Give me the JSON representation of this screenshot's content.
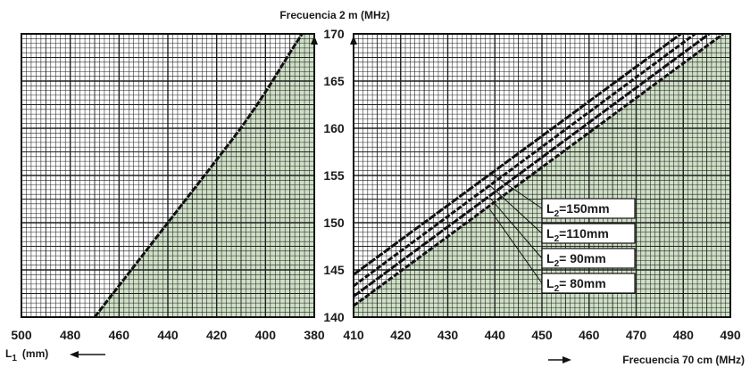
{
  "chart_data": [
    {
      "type": "line",
      "panel": "left",
      "title": "",
      "xlabel": "L1 (mm)",
      "xlabel_parts": {
        "main": "L",
        "sub": "1",
        "unit": "(mm)"
      },
      "ylabel": "Frecuencia 2 m (MHz)",
      "xlim": [
        500,
        380
      ],
      "ylim": [
        140,
        170
      ],
      "x_ticks": [
        "500",
        "480",
        "460",
        "440",
        "420",
        "400",
        "380"
      ],
      "series": [
        {
          "x": [
            470,
            455,
            440,
            425,
            410,
            400,
            390,
            385
          ],
          "y": [
            140,
            145,
            150,
            155,
            160,
            163.8,
            168,
            170
          ]
        }
      ],
      "shaded_region": "right of curve",
      "grid": true
    },
    {
      "type": "line",
      "panel": "right",
      "title": "",
      "xlabel": "Frecuencia 70 cm (MHz)",
      "ylabel": "Frecuencia 2 m (MHz)",
      "xlim": [
        410,
        490
      ],
      "ylim": [
        140,
        170
      ],
      "x_ticks": [
        "410",
        "420",
        "430",
        "440",
        "450",
        "460",
        "470",
        "480",
        "490"
      ],
      "y_ticks": [
        "140",
        "145",
        "150",
        "155",
        "160",
        "165",
        "170"
      ],
      "series": [
        {
          "name": "L2=150mm",
          "label": {
            "main": "L",
            "sub": "2",
            "text": "=150mm"
          },
          "x": [
            410,
            479.5
          ],
          "y": [
            144.5,
            170
          ]
        },
        {
          "name": "L2=110mm",
          "label": {
            "main": "L",
            "sub": "2",
            "text": "=110mm"
          },
          "x": [
            410,
            482.5
          ],
          "y": [
            143.3,
            170
          ]
        },
        {
          "name": "L2= 90mm",
          "label": {
            "main": "L",
            "sub": "2",
            "text": "= 90mm"
          },
          "x": [
            410,
            485.5
          ],
          "y": [
            142.2,
            170
          ]
        },
        {
          "name": "L2= 80mm",
          "label": {
            "main": "L",
            "sub": "2",
            "text": "= 80mm"
          },
          "x": [
            410,
            488.5
          ],
          "y": [
            141.2,
            170
          ]
        }
      ],
      "shaded_region": "below band",
      "grid": true
    }
  ],
  "colors": {
    "grid": "#1f1f1f",
    "shade": "#cfe0c6",
    "curve": "#111111",
    "background": "#ffffff"
  }
}
